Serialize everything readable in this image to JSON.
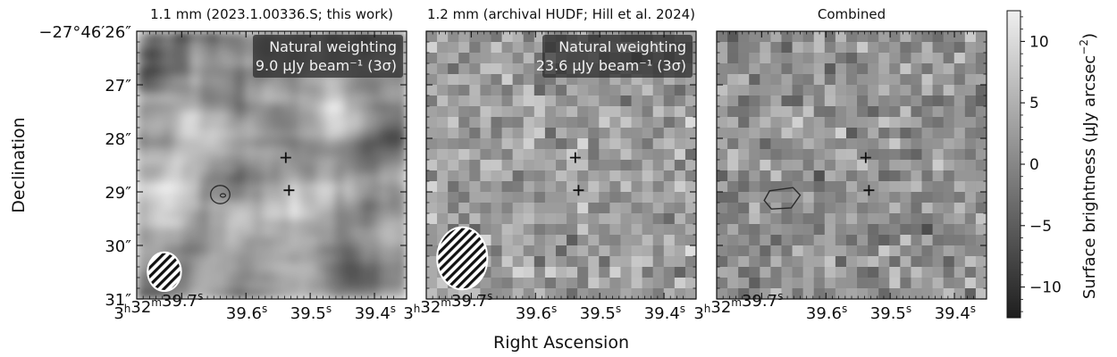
{
  "chart_data": {
    "type": "heatmap",
    "xlabel": "Right Ascension",
    "ylabel": "Declination",
    "x_ticks": [
      {
        "value": 39.7,
        "label_parts": [
          "3",
          "h",
          "32",
          "m",
          "39.7",
          "s"
        ]
      },
      {
        "value": 39.6,
        "label_parts": [
          "",
          "",
          "",
          "",
          "39.6",
          "s"
        ]
      },
      {
        "value": 39.5,
        "label_parts": [
          "",
          "",
          "",
          "",
          "39.5",
          "s"
        ]
      },
      {
        "value": 39.4,
        "label_parts": [
          "",
          "",
          "",
          "",
          "39.4",
          "s"
        ]
      }
    ],
    "y_ticks": [
      {
        "value": 26,
        "label": "−27°46′26″"
      },
      {
        "value": 27,
        "label": "27″"
      },
      {
        "value": 28,
        "label": "28″"
      },
      {
        "value": 29,
        "label": "29″"
      },
      {
        "value": 30,
        "label": "30″"
      },
      {
        "value": 31,
        "label": "31″"
      }
    ],
    "xlim": [
      39.77,
      39.35
    ],
    "ylim": [
      31,
      26
    ],
    "panels": [
      {
        "title": "1.1 mm (2023.1.00336.S; this work)",
        "style": "smooth",
        "seed": 11,
        "annotation_lines": [
          "Natural weighting",
          "9.0 µJy beam⁻¹ (3σ)"
        ],
        "markers": [
          {
            "x": 39.538,
            "y": 28.36
          },
          {
            "x": 39.533,
            "y": 28.97
          }
        ],
        "contour": {
          "center": [
            39.64,
            29.05
          ],
          "rx": 0.015,
          "ry": 0.17,
          "inner": true
        },
        "beam": {
          "center": [
            39.727,
            30.49
          ],
          "width": 0.052,
          "height": 0.72
        }
      },
      {
        "title": "1.2 mm (archival HUDF; Hill et al. 2024)",
        "style": "pixelated",
        "seed": 23,
        "annotation_lines": [
          "Natural weighting",
          "23.6 µJy beam⁻¹ (3σ)"
        ],
        "markers": [
          {
            "x": 39.538,
            "y": 28.36
          },
          {
            "x": 39.533,
            "y": 28.97
          }
        ],
        "contour": null,
        "beam": {
          "center": [
            39.714,
            30.24
          ],
          "width": 0.078,
          "height": 1.16
        }
      },
      {
        "title": "Combined",
        "style": "pixelated",
        "seed": 37,
        "annotation_lines": [],
        "markers": [
          {
            "x": 39.538,
            "y": 28.36
          },
          {
            "x": 39.533,
            "y": 28.97
          }
        ],
        "contour": {
          "center": [
            39.668,
            29.12
          ],
          "rx": 0.028,
          "ry": 0.2,
          "inner": false
        },
        "beam": null
      }
    ],
    "colorbar": {
      "label_main": "Surface brightness (µJy arcsec",
      "label_exp": "−2",
      "label_close": ")",
      "range": [
        -12.5,
        12.5
      ],
      "ticks": [
        {
          "value": 10,
          "label": "10"
        },
        {
          "value": 5,
          "label": "5"
        },
        {
          "value": 0,
          "label": "0"
        },
        {
          "value": -5,
          "label": "−5"
        },
        {
          "value": -10,
          "label": "−10"
        }
      ],
      "colormap": "gray"
    }
  }
}
